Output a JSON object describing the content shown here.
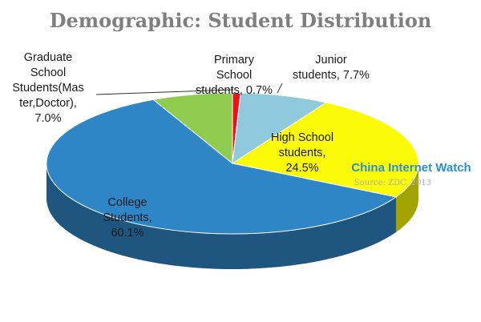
{
  "chart_data": {
    "type": "pie",
    "title": "Demographic: Student Distribution",
    "slices": [
      {
        "label_lines": [
          "Primary",
          "School",
          "students, 0.7%"
        ],
        "value": 0.7,
        "color": "#e8131c",
        "side_color": "#8e0b10"
      },
      {
        "label_lines": [
          "Junior",
          "students, 7.7%"
        ],
        "value": 7.7,
        "color": "#8fcadc",
        "side_color": "#4f8596"
      },
      {
        "label_lines": [
          "High School",
          "students,",
          "24.5%"
        ],
        "value": 24.5,
        "color": "#fbfb08",
        "side_color": "#a3a300"
      },
      {
        "label_lines": [
          "College",
          "Students,",
          "60.1%"
        ],
        "value": 60.1,
        "color": "#2f86c6",
        "side_color": "#1f567f"
      },
      {
        "label_lines": [
          "Graduate",
          "School",
          "Students(Mas",
          "ter,Doctor),",
          "7.0%"
        ],
        "value": 7.0,
        "color": "#8fcb4f",
        "side_color": "#5b8a2a"
      }
    ]
  },
  "watermark": {
    "brand": "China Internet Watch",
    "source": "Source: ZDC, 2013"
  }
}
